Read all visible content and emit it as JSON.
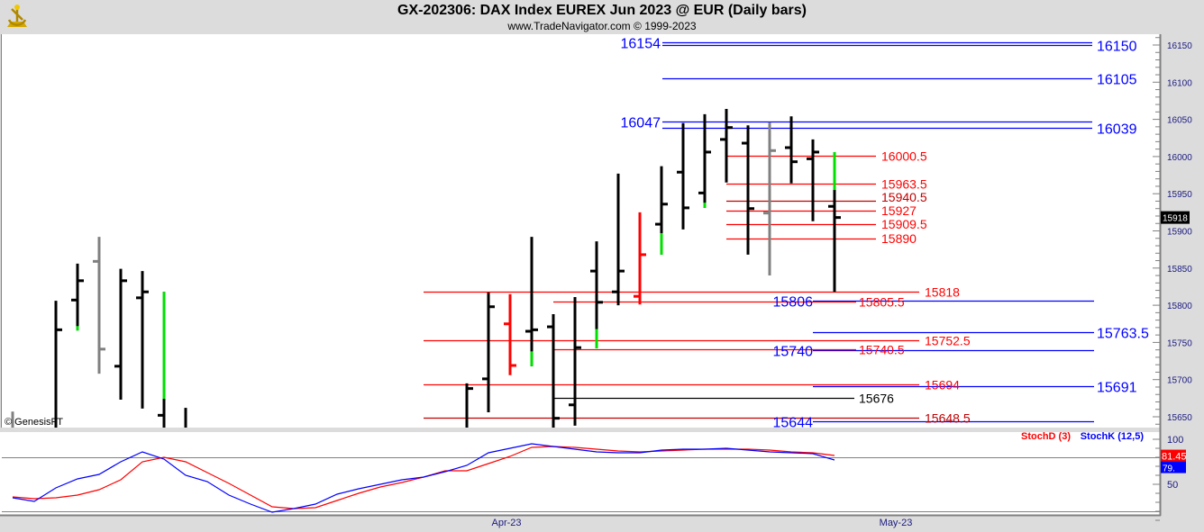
{
  "header": {
    "title": "GX-202306:  DAX Index EUREX Jun 2023 @ EUR  (Daily bars)",
    "subtitle": "www.TradeNavigator.com © 1999-2023",
    "logo": "sextant-logo"
  },
  "watermark": "© GenesisFT",
  "colors": {
    "up_accent": "#00e000",
    "down_accent": "#ff0000",
    "bar": "#000000",
    "inside": "#808080",
    "support": "#0000ff",
    "resistance": "#ff0000",
    "stochD": "#ff0000",
    "stochK": "#0000ff"
  },
  "chart_data": [
    {
      "type": "ohlc",
      "ylim": [
        15640,
        16165
      ],
      "yticks": [
        15650,
        15700,
        15750,
        15800,
        15850,
        15900,
        15950,
        16000,
        16050,
        16100,
        16150
      ],
      "last_price": "15918",
      "xticks": [
        {
          "label": "Apr-23",
          "index": 23
        },
        {
          "label": "May-23",
          "index": 41
        }
      ],
      "bars": [
        {
          "i": 0,
          "o": 15620,
          "h": 15657,
          "l": 15600,
          "c": 15620,
          "color": "gray"
        },
        {
          "i": 2,
          "o": 15620,
          "h": 15806,
          "l": 15600,
          "c": 15767,
          "color": "black"
        },
        {
          "i": 3,
          "o": 15807,
          "h": 15856,
          "l": 15766,
          "c": 15833,
          "color": "black",
          "seg": [
            15766,
            15772,
            "green"
          ]
        },
        {
          "i": 4,
          "o": 15859,
          "h": 15892,
          "l": 15708,
          "c": 15741,
          "color": "gray"
        },
        {
          "i": 5,
          "o": 15718,
          "h": 15849,
          "l": 15673,
          "c": 15833,
          "color": "black"
        },
        {
          "i": 6,
          "o": 15810,
          "h": 15846,
          "l": 15661,
          "c": 15818,
          "color": "black"
        },
        {
          "i": 7,
          "o": 15652,
          "h": 15818,
          "l": 15600,
          "c": 15620,
          "color": "black",
          "seg": [
            15674,
            15818,
            "green"
          ]
        },
        {
          "i": 8,
          "o": 15620,
          "h": 15662,
          "l": 15600,
          "c": 15620,
          "color": "black"
        },
        {
          "i": 21,
          "o": 15620,
          "h": 15695,
          "l": 15600,
          "c": 15688,
          "color": "black"
        },
        {
          "i": 22,
          "o": 15701,
          "h": 15817,
          "l": 15656,
          "c": 15798,
          "color": "black"
        },
        {
          "i": 23,
          "o": 15775,
          "h": 15815,
          "l": 15706,
          "c": 15719,
          "color": "red"
        },
        {
          "i": 24,
          "o": 15765,
          "h": 15892,
          "l": 15718,
          "c": 15767,
          "color": "black",
          "seg": [
            15718,
            15738,
            "green"
          ]
        },
        {
          "i": 25,
          "o": 15771,
          "h": 15788,
          "l": 15600,
          "c": 15648,
          "color": "black"
        },
        {
          "i": 26,
          "o": 15666,
          "h": 15811,
          "l": 15638,
          "c": 15743,
          "color": "black"
        },
        {
          "i": 27,
          "o": 15846,
          "h": 15886,
          "l": 15742,
          "c": 15804,
          "color": "black",
          "seg": [
            15742,
            15768,
            "green"
          ]
        },
        {
          "i": 28,
          "o": 15818,
          "h": 15977,
          "l": 15800,
          "c": 15846,
          "color": "black"
        },
        {
          "i": 29,
          "o": 15812,
          "h": 15925,
          "l": 15801,
          "c": 15868,
          "color": "red"
        },
        {
          "i": 30,
          "o": 15909,
          "h": 15987,
          "l": 15868,
          "c": 15936,
          "color": "black",
          "seg": [
            15868,
            15897,
            "green"
          ]
        },
        {
          "i": 31,
          "o": 15979,
          "h": 16045,
          "l": 15902,
          "c": 15931,
          "color": "black"
        },
        {
          "i": 32,
          "o": 15951,
          "h": 16057,
          "l": 15931,
          "c": 16006,
          "color": "black",
          "seg": [
            15931,
            15938,
            "green"
          ]
        },
        {
          "i": 33,
          "o": 16023,
          "h": 16064,
          "l": 15965,
          "c": 16039,
          "color": "black"
        },
        {
          "i": 34,
          "o": 16018,
          "h": 16042,
          "l": 15868,
          "c": 15930,
          "color": "black"
        },
        {
          "i": 35,
          "o": 15924,
          "h": 16046,
          "l": 15840,
          "c": 16008,
          "color": "gray"
        },
        {
          "i": 36,
          "o": 16012,
          "h": 16054,
          "l": 15964,
          "c": 15993,
          "color": "black"
        },
        {
          "i": 37,
          "o": 15997,
          "h": 16023,
          "l": 15913,
          "c": 16006,
          "color": "black"
        },
        {
          "i": 38,
          "o": 15933,
          "h": 16006,
          "l": 15818,
          "c": 15918,
          "color": "black",
          "seg": [
            15955,
            16006,
            "green"
          ]
        }
      ],
      "levels": [
        {
          "label": "16154",
          "value": 16154,
          "color": "blue"
        },
        {
          "label": "16150",
          "value": 16150,
          "color": "blue"
        },
        {
          "label": "16105",
          "value": 16105,
          "color": "blue"
        },
        {
          "label": "16047",
          "value": 16047,
          "color": "blue"
        },
        {
          "label": "16039",
          "value": 16039,
          "color": "blue"
        },
        {
          "label": "16000.5",
          "value": 16000.5,
          "color": "red"
        },
        {
          "label": "15963.5",
          "value": 15963.5,
          "color": "red"
        },
        {
          "label": "15940.5",
          "value": 15940.5,
          "color": "darkred"
        },
        {
          "label": "15927",
          "value": 15927,
          "color": "red"
        },
        {
          "label": "15909.5",
          "value": 15909.5,
          "color": "red"
        },
        {
          "label": "15890",
          "value": 15890,
          "color": "red"
        },
        {
          "label": "15818",
          "value": 15818,
          "color": "red"
        },
        {
          "label": "15806",
          "value": 15806,
          "color": "blue"
        },
        {
          "label": "15805.5",
          "value": 15805.5,
          "color": "red"
        },
        {
          "label": "15763.5",
          "value": 15763.5,
          "color": "blue"
        },
        {
          "label": "15752.5",
          "value": 15752.5,
          "color": "red"
        },
        {
          "label": "15740",
          "value": 15740,
          "color": "blue"
        },
        {
          "label": "15740.5",
          "value": 15740.5,
          "color": "red"
        },
        {
          "label": "15694",
          "value": 15694,
          "color": "red"
        },
        {
          "label": "15691",
          "value": 15691,
          "color": "blue"
        },
        {
          "label": "15676",
          "value": 15676,
          "color": "black"
        },
        {
          "label": "15648.5",
          "value": 15648.5,
          "color": "darkred"
        },
        {
          "label": "15644",
          "value": 15644,
          "color": "blue"
        }
      ]
    },
    {
      "type": "line",
      "ylim": [
        0,
        107
      ],
      "yticks": [
        50,
        100
      ],
      "reference_lines": [
        20,
        80
      ],
      "series": [
        {
          "name": "StochD (3)",
          "color": "#ff0000",
          "last": "81.45",
          "values": [
            36,
            34,
            35,
            38,
            44,
            55,
            75,
            80,
            75,
            63,
            51,
            38,
            25,
            23,
            24,
            32,
            40,
            47,
            52,
            58,
            65,
            65,
            73,
            81,
            91,
            92,
            91,
            89,
            87,
            86,
            87,
            88,
            89,
            89,
            89,
            88,
            86,
            85,
            82
          ]
        },
        {
          "name": "StochK (12,5)",
          "color": "#0000ff",
          "last": "79.",
          "values": [
            35,
            31,
            46,
            56,
            61,
            75,
            86,
            78,
            60,
            53,
            38,
            28,
            19,
            23,
            28,
            39,
            45,
            50,
            55,
            58,
            64,
            71,
            85,
            90,
            95,
            92,
            89,
            86,
            85,
            85,
            88,
            89,
            89,
            90,
            88,
            86,
            85,
            84,
            77
          ]
        }
      ]
    }
  ]
}
